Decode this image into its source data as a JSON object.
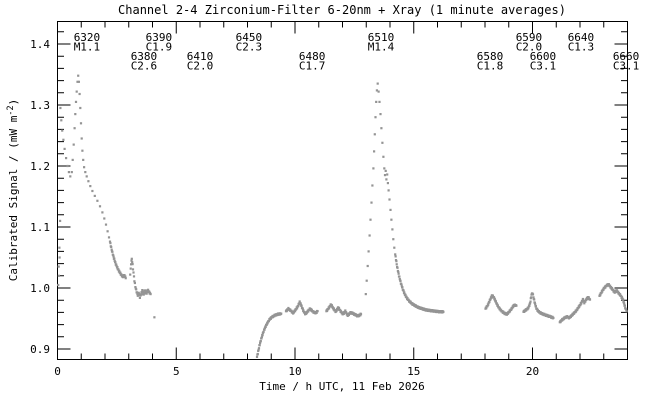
{
  "colors": {
    "marker": "#949494",
    "axis": "#000000",
    "background": "#ffffff"
  },
  "chart_data": {
    "type": "scatter",
    "title": "Channel 2-4  Zirconium-Filter  6-20nm + Xray  (1 minute averages)",
    "xlabel": "Time / h UTC, 11 Feb 2026",
    "ylabel": "Calibrated Signal / (mW m⁻²)",
    "ylabel_parts": {
      "main": "Calibrated Signal / (mW m",
      "sup": "-2",
      "end": ")"
    },
    "xlim": [
      0,
      24
    ],
    "ylim": [
      0.883,
      1.437
    ],
    "xticks_major": [
      0,
      5,
      10,
      15,
      20
    ],
    "xtick_minor_step": 1,
    "yticks_major": [
      0.9,
      1.0,
      1.1,
      1.2,
      1.3,
      1.4
    ],
    "ytick_minor_step": 0.02,
    "grid": false,
    "legend": false,
    "events": [
      {
        "id": "6320",
        "class": "M1.1",
        "t": 1.24,
        "row": 1
      },
      {
        "id": "6380",
        "class": "C2.6",
        "t": 3.64,
        "row": 2
      },
      {
        "id": "6390",
        "class": "C1.9",
        "t": 4.27,
        "row": 1
      },
      {
        "id": "6410",
        "class": "C2.0",
        "t": 6.0,
        "row": 2
      },
      {
        "id": "6450",
        "class": "C2.3",
        "t": 8.06,
        "row": 1
      },
      {
        "id": "6480",
        "class": "C1.7",
        "t": 10.72,
        "row": 2
      },
      {
        "id": "6510",
        "class": "M1.4",
        "t": 13.62,
        "row": 1
      },
      {
        "id": "6580",
        "class": "C1.8",
        "t": 18.21,
        "row": 2
      },
      {
        "id": "6590",
        "class": "C2.0",
        "t": 19.85,
        "row": 1
      },
      {
        "id": "6600",
        "class": "C3.1",
        "t": 20.44,
        "row": 2
      },
      {
        "id": "6640",
        "class": "C1.3",
        "t": 22.04,
        "row": 1
      },
      {
        "id": "6660",
        "class": "C3.1",
        "t": 23.94,
        "row": 2
      }
    ],
    "series": [
      {
        "name": "start-edge-recovery",
        "mode": "dots",
        "points": [
          [
            0.03,
            1.005
          ],
          [
            0.06,
            1.02
          ],
          [
            0.05,
            1.035
          ],
          [
            0.09,
            1.05
          ],
          [
            0.08,
            1.066
          ],
          [
            0.11,
            1.11
          ]
        ]
      },
      {
        "name": "pre-flare-decay",
        "mode": "dots",
        "points": [
          [
            0.12,
            1.295
          ],
          [
            0.16,
            1.275
          ],
          [
            0.2,
            1.258
          ],
          [
            0.25,
            1.243
          ],
          [
            0.3,
            1.228
          ],
          [
            0.36,
            1.213
          ],
          [
            0.42,
            1.2
          ],
          [
            0.48,
            1.19
          ],
          [
            0.54,
            1.183
          ]
        ]
      },
      {
        "name": "flare-6320-M1.1-rise-peak",
        "mode": "dots",
        "points": [
          [
            0.6,
            1.19
          ],
          [
            0.64,
            1.21
          ],
          [
            0.68,
            1.235
          ],
          [
            0.72,
            1.262
          ],
          [
            0.75,
            1.285
          ],
          [
            0.78,
            1.305
          ],
          [
            0.81,
            1.322
          ],
          [
            0.84,
            1.338
          ],
          [
            0.87,
            1.348
          ],
          [
            0.9,
            1.338
          ],
          [
            0.93,
            1.318
          ],
          [
            0.96,
            1.295
          ],
          [
            0.99,
            1.27
          ],
          [
            1.02,
            1.245
          ],
          [
            1.05,
            1.225
          ],
          [
            1.08,
            1.21
          ]
        ]
      },
      {
        "name": "flare-6320-decay-dotted",
        "mode": "dots",
        "points": [
          [
            1.12,
            1.198
          ],
          [
            1.17,
            1.19
          ],
          [
            1.23,
            1.183
          ],
          [
            1.3,
            1.175
          ],
          [
            1.38,
            1.167
          ],
          [
            1.47,
            1.159
          ],
          [
            1.57,
            1.151
          ],
          [
            1.68,
            1.143
          ],
          [
            1.79,
            1.134
          ],
          [
            1.89,
            1.124
          ],
          [
            1.97,
            1.114
          ],
          [
            2.04,
            1.104
          ],
          [
            2.11,
            1.093
          ],
          [
            2.17,
            1.083
          ]
        ]
      },
      {
        "name": "flare-6320-decay-tail",
        "mode": "line",
        "points": [
          [
            2.21,
            1.076
          ],
          [
            2.28,
            1.063
          ],
          [
            2.36,
            1.051
          ],
          [
            2.44,
            1.041
          ],
          [
            2.52,
            1.033
          ],
          [
            2.6,
            1.027
          ],
          [
            2.68,
            1.022
          ],
          [
            2.76,
            1.018
          ],
          [
            2.82,
            1.021
          ],
          [
            2.87,
            1.016
          ]
        ]
      },
      {
        "name": "bumps-C2.6-C1.9",
        "mode": "line",
        "points": [
          [
            3.06,
            1.022
          ],
          [
            3.1,
            1.04
          ],
          [
            3.13,
            1.048
          ],
          [
            3.16,
            1.038
          ],
          [
            3.2,
            1.025
          ],
          [
            3.24,
            1.012
          ],
          [
            3.28,
            1.002
          ],
          [
            3.33,
            0.994
          ],
          [
            3.38,
            0.988
          ],
          [
            3.42,
            0.993
          ],
          [
            3.47,
            0.985
          ],
          [
            3.52,
            0.99
          ],
          [
            3.57,
            0.996
          ],
          [
            3.62,
            0.988
          ],
          [
            3.68,
            0.997
          ],
          [
            3.74,
            0.99
          ],
          [
            3.8,
            0.997
          ],
          [
            3.86,
            0.993
          ],
          [
            3.92,
            0.99
          ]
        ]
      },
      {
        "name": "isolated-point",
        "mode": "dots",
        "points": [
          [
            4.08,
            0.952
          ]
        ]
      },
      {
        "name": "recovery-rise",
        "mode": "line",
        "points": [
          [
            8.4,
            0.887
          ],
          [
            8.45,
            0.896
          ],
          [
            8.5,
            0.905
          ],
          [
            8.56,
            0.914
          ],
          [
            8.62,
            0.922
          ],
          [
            8.68,
            0.929
          ],
          [
            8.75,
            0.936
          ],
          [
            8.83,
            0.942
          ],
          [
            8.92,
            0.948
          ],
          [
            9.02,
            0.952
          ],
          [
            9.14,
            0.955
          ],
          [
            9.28,
            0.957
          ],
          [
            9.42,
            0.958
          ]
        ]
      },
      {
        "name": "midday-plateau-a-C1.7",
        "mode": "line",
        "points": [
          [
            9.62,
            0.962
          ],
          [
            9.72,
            0.966
          ],
          [
            9.82,
            0.963
          ],
          [
            9.92,
            0.959
          ],
          [
            10.02,
            0.964
          ],
          [
            10.12,
            0.97
          ],
          [
            10.2,
            0.977
          ],
          [
            10.28,
            0.97
          ],
          [
            10.36,
            0.962
          ],
          [
            10.44,
            0.957
          ],
          [
            10.54,
            0.962
          ],
          [
            10.64,
            0.966
          ],
          [
            10.76,
            0.961
          ],
          [
            10.88,
            0.959
          ],
          [
            10.95,
            0.962
          ]
        ]
      },
      {
        "name": "midday-plateau-b",
        "mode": "line",
        "points": [
          [
            11.32,
            0.962
          ],
          [
            11.42,
            0.967
          ],
          [
            11.52,
            0.973
          ],
          [
            11.62,
            0.966
          ],
          [
            11.72,
            0.961
          ],
          [
            11.82,
            0.968
          ],
          [
            11.92,
            0.962
          ],
          [
            12.02,
            0.957
          ],
          [
            12.12,
            0.962
          ],
          [
            12.22,
            0.955
          ],
          [
            12.35,
            0.96
          ],
          [
            12.5,
            0.957
          ],
          [
            12.65,
            0.954
          ],
          [
            12.78,
            0.957
          ]
        ]
      },
      {
        "name": "flare-6510-M1.4-rise",
        "mode": "dots",
        "points": [
          [
            12.98,
            0.99
          ],
          [
            13.02,
            1.012
          ],
          [
            13.06,
            1.036
          ],
          [
            13.1,
            1.06
          ],
          [
            13.14,
            1.086
          ],
          [
            13.18,
            1.112
          ],
          [
            13.22,
            1.14
          ],
          [
            13.26,
            1.168
          ],
          [
            13.3,
            1.196
          ],
          [
            13.33,
            1.224
          ],
          [
            13.36,
            1.252
          ],
          [
            13.39,
            1.28
          ],
          [
            13.42,
            1.305
          ],
          [
            13.45,
            1.324
          ],
          [
            13.48,
            1.335
          ]
        ]
      },
      {
        "name": "flare-6510-decay-dotted",
        "mode": "dots",
        "points": [
          [
            13.52,
            1.322
          ],
          [
            13.56,
            1.305
          ],
          [
            13.6,
            1.285
          ],
          [
            13.64,
            1.262
          ],
          [
            13.68,
            1.238
          ],
          [
            13.72,
            1.215
          ],
          [
            13.76,
            1.196
          ],
          [
            13.79,
            1.185
          ],
          [
            13.82,
            1.192
          ],
          [
            13.85,
            1.178
          ],
          [
            13.88,
            1.186
          ],
          [
            13.91,
            1.172
          ],
          [
            13.94,
            1.16
          ],
          [
            13.98,
            1.145
          ],
          [
            14.02,
            1.128
          ],
          [
            14.06,
            1.112
          ],
          [
            14.1,
            1.096
          ],
          [
            14.14,
            1.08
          ],
          [
            14.18,
            1.066
          ]
        ]
      },
      {
        "name": "flare-6510-decay-tail",
        "mode": "line",
        "points": [
          [
            14.22,
            1.055
          ],
          [
            14.3,
            1.035
          ],
          [
            14.38,
            1.02
          ],
          [
            14.46,
            1.008
          ],
          [
            14.54,
            0.998
          ],
          [
            14.62,
            0.99
          ],
          [
            14.72,
            0.983
          ],
          [
            14.82,
            0.978
          ],
          [
            14.94,
            0.974
          ],
          [
            15.06,
            0.971
          ],
          [
            15.2,
            0.968
          ],
          [
            15.36,
            0.966
          ],
          [
            15.52,
            0.964
          ],
          [
            15.7,
            0.963
          ],
          [
            15.9,
            0.962
          ],
          [
            16.1,
            0.961
          ],
          [
            16.25,
            0.961
          ]
        ]
      },
      {
        "name": "evening-bump-C1.8",
        "mode": "line",
        "points": [
          [
            18.02,
            0.966
          ],
          [
            18.12,
            0.972
          ],
          [
            18.22,
            0.981
          ],
          [
            18.3,
            0.988
          ],
          [
            18.38,
            0.984
          ],
          [
            18.46,
            0.977
          ],
          [
            18.56,
            0.969
          ],
          [
            18.68,
            0.963
          ],
          [
            18.8,
            0.959
          ],
          [
            18.92,
            0.957
          ],
          [
            19.02,
            0.961
          ],
          [
            19.12,
            0.966
          ],
          [
            19.22,
            0.972
          ],
          [
            19.32,
            0.971
          ]
        ]
      },
      {
        "name": "evening-bump-C2.0-C3.1",
        "mode": "line",
        "points": [
          [
            19.62,
            0.961
          ],
          [
            19.72,
            0.964
          ],
          [
            19.82,
            0.967
          ],
          [
            19.9,
            0.975
          ],
          [
            19.96,
            0.989
          ],
          [
            20.0,
            0.992
          ],
          [
            20.04,
            0.985
          ],
          [
            20.1,
            0.975
          ],
          [
            20.16,
            0.967
          ],
          [
            20.24,
            0.962
          ],
          [
            20.34,
            0.959
          ],
          [
            20.46,
            0.957
          ],
          [
            20.6,
            0.955
          ],
          [
            20.75,
            0.953
          ],
          [
            20.88,
            0.951
          ]
        ]
      },
      {
        "name": "evening-rise-C1.3",
        "mode": "line",
        "points": [
          [
            21.15,
            0.944
          ],
          [
            21.25,
            0.948
          ],
          [
            21.35,
            0.951
          ],
          [
            21.45,
            0.953
          ],
          [
            21.55,
            0.951
          ],
          [
            21.65,
            0.955
          ],
          [
            21.75,
            0.959
          ],
          [
            21.85,
            0.963
          ],
          [
            21.95,
            0.969
          ],
          [
            22.05,
            0.975
          ],
          [
            22.12,
            0.981
          ],
          [
            22.18,
            0.976
          ],
          [
            22.26,
            0.981
          ],
          [
            22.34,
            0.985
          ],
          [
            22.42,
            0.981
          ]
        ]
      },
      {
        "name": "late-bump-C3.1",
        "mode": "line",
        "points": [
          [
            22.82,
            0.987
          ],
          [
            22.92,
            0.994
          ],
          [
            23.02,
            1.0
          ],
          [
            23.12,
            1.004
          ],
          [
            23.2,
            1.006
          ],
          [
            23.3,
            1.001
          ],
          [
            23.38,
            0.997
          ],
          [
            23.46,
            0.993
          ],
          [
            23.54,
            0.996
          ],
          [
            23.62,
            0.992
          ],
          [
            23.72,
            0.987
          ],
          [
            23.8,
            0.982
          ],
          [
            23.86,
            0.974
          ],
          [
            23.92,
            0.966
          ],
          [
            23.96,
            0.962
          ]
        ]
      }
    ]
  }
}
